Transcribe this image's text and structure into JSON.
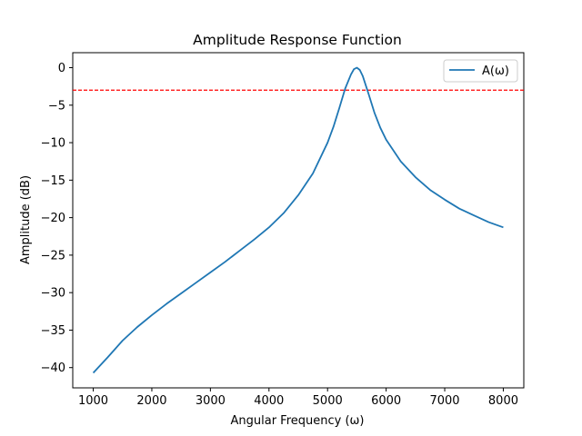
{
  "chart_data": {
    "type": "line",
    "title": "Amplitude Response Function",
    "xlabel": "Angular Frequency (ω)",
    "ylabel": "Amplitude (dB)",
    "xlim": [
      650,
      8350
    ],
    "ylim": [
      -42.7,
      2.0
    ],
    "x_ticks": [
      1000,
      2000,
      3000,
      4000,
      5000,
      6000,
      7000,
      8000
    ],
    "y_ticks": [
      0,
      -5,
      -10,
      -15,
      -20,
      -25,
      -30,
      -35,
      -40
    ],
    "y_tick_labels": [
      "0",
      "−5",
      "−10",
      "−15",
      "−20",
      "−25",
      "−30",
      "−35",
      "−40"
    ],
    "grid": false,
    "legend_position": "top-right",
    "series": [
      {
        "name": "A(ω)",
        "color": "#1f77b4",
        "x": [
          1000,
          1250,
          1500,
          1750,
          2000,
          2250,
          2500,
          2750,
          3000,
          3250,
          3500,
          3750,
          4000,
          4250,
          4500,
          4750,
          5000,
          5100,
          5200,
          5300,
          5400,
          5450,
          5500,
          5550,
          5600,
          5700,
          5800,
          5900,
          6000,
          6250,
          6500,
          6750,
          7000,
          7250,
          7500,
          7750,
          8000
        ],
        "y": [
          -40.7,
          -38.6,
          -36.4,
          -34.6,
          -33.0,
          -31.5,
          -30.1,
          -28.7,
          -27.3,
          -25.9,
          -24.4,
          -22.9,
          -21.3,
          -19.4,
          -17.0,
          -14.1,
          -10.0,
          -7.9,
          -5.4,
          -2.8,
          -0.9,
          -0.2,
          0.0,
          -0.3,
          -1.1,
          -3.5,
          -6.0,
          -8.0,
          -9.6,
          -12.5,
          -14.6,
          -16.3,
          -17.6,
          -18.8,
          -19.7,
          -20.6,
          -21.3
        ]
      }
    ],
    "reference_line": {
      "y": -3,
      "color": "#ff0000",
      "style": "dashed"
    }
  }
}
